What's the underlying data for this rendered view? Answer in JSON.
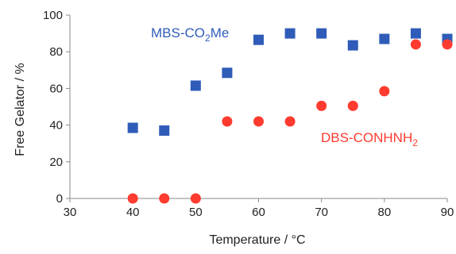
{
  "chart_data": {
    "type": "scatter",
    "xlabel": "Temperature / °C",
    "ylabel": "Free Gelator / %",
    "xlim": [
      30,
      90
    ],
    "ylim": [
      0,
      100
    ],
    "xticks": [
      30,
      40,
      50,
      60,
      70,
      80,
      90
    ],
    "yticks": [
      0,
      20,
      40,
      60,
      80,
      100
    ],
    "grid": false,
    "series": [
      {
        "name": "MBS-CO2Me",
        "color": "#2f5cb8",
        "marker": "square",
        "x": [
          40,
          45,
          50,
          55,
          60,
          65,
          70,
          75,
          80,
          85,
          90
        ],
        "y": [
          38.5,
          37,
          61.5,
          68.5,
          86.5,
          90,
          90,
          83.5,
          87,
          90,
          87
        ]
      },
      {
        "name": "DBS-CONHNH2",
        "color": "#ff3b2f",
        "marker": "circle",
        "x": [
          40,
          45,
          50,
          55,
          60,
          65,
          70,
          75,
          80,
          85,
          90
        ],
        "y": [
          0,
          0,
          0,
          42,
          42,
          42,
          50.5,
          50.5,
          58.5,
          84,
          84
        ]
      }
    ],
    "annotations": {
      "mbs": {
        "main": "MBS-CO",
        "sub": "2",
        "tail": "Me"
      },
      "dbs": {
        "main": "DBS-CONHNH",
        "sub": "2"
      }
    }
  }
}
